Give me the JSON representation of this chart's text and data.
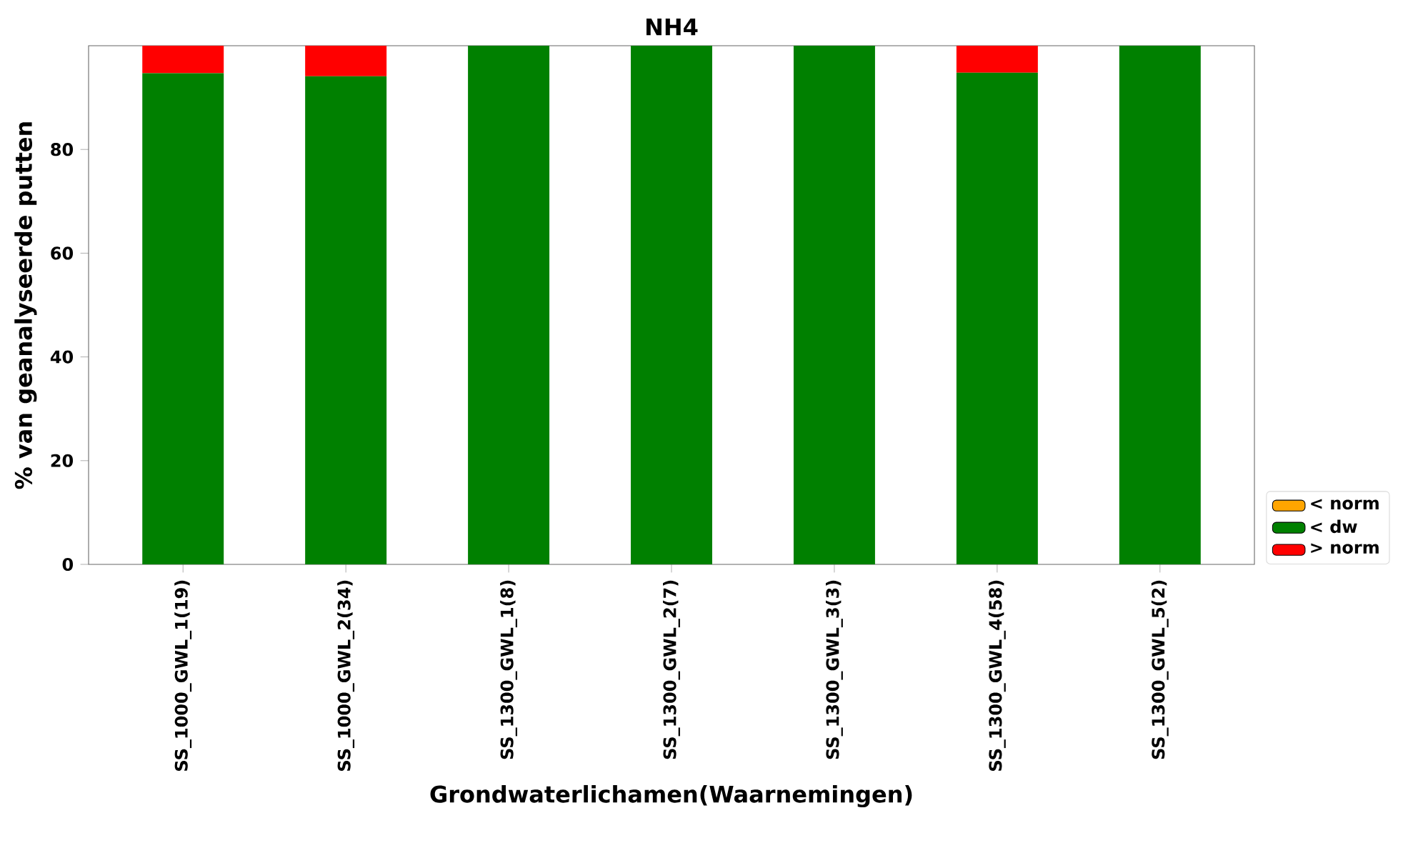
{
  "chart_data": {
    "type": "bar",
    "title": "NH4",
    "xlabel": "Grondwaterlichamen(Waarnemingen)",
    "ylabel": "% van geanalyseerde putten",
    "categories": [
      "SS_1000_GWL_1(19)",
      "SS_1000_GWL_2(34)",
      "SS_1300_GWL_1(8)",
      "SS_1300_GWL_2(7)",
      "SS_1300_GWL_3(3)",
      "SS_1300_GWL_4(58)",
      "SS_1300_GWL_5(2)"
    ],
    "stacked": true,
    "ylim": [
      0,
      100
    ],
    "yticks": [
      0,
      20,
      40,
      60,
      80
    ],
    "legend": "bottom right",
    "series": [
      {
        "name": "< norm",
        "color": "#ffa500",
        "values": [
          0,
          0,
          0,
          0,
          0,
          0,
          0
        ]
      },
      {
        "name": "< dw",
        "color": "#008000",
        "values": [
          94.7,
          94.1,
          100,
          100,
          100,
          94.8,
          100
        ]
      },
      {
        "name": "> norm",
        "color": "#ff0000",
        "values": [
          5.3,
          5.9,
          0,
          0,
          0,
          5.2,
          0
        ]
      }
    ]
  }
}
